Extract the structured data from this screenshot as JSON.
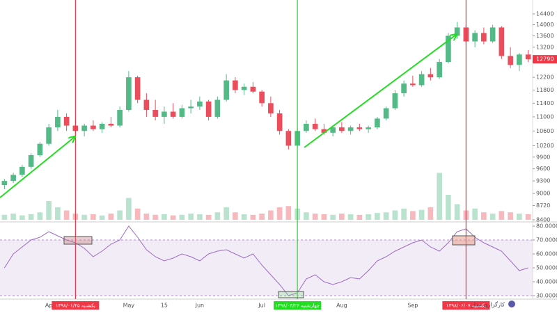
{
  "chart_data": {
    "type": "candlestick",
    "categories": [
      null,
      null,
      null,
      null,
      null,
      "Ap",
      null,
      null,
      "یکشنبه ۱۳۹۸/۰۱/۲۵",
      null,
      null,
      null,
      null,
      null,
      "May",
      null,
      null,
      null,
      "15",
      null,
      null,
      null,
      "Jun",
      null,
      null,
      null,
      null,
      null,
      null,
      "Jul",
      null,
      null,
      null,
      "چهارشنبه ۱۳۹۸/۰۴/۲۶",
      null,
      null,
      null,
      null,
      "Aug",
      null,
      null,
      null,
      null,
      null,
      null,
      null,
      "Sep",
      null,
      null,
      null,
      null,
      null,
      "یکشنبه ۱۳۹۸/۰۶/۰۷",
      null,
      null,
      null,
      null,
      null,
      null,
      null
    ],
    "open": [
      9200,
      9300,
      9450,
      9650,
      9950,
      10250,
      10700,
      11000,
      10750,
      10600,
      10750,
      10650,
      10800,
      10750,
      11200,
      12200,
      11500,
      11200,
      11000,
      11150,
      11000,
      11250,
      11300,
      11450,
      11000,
      11500,
      12100,
      11800,
      11900,
      11750,
      11400,
      11100,
      10600,
      10200,
      10600,
      10800,
      10650,
      10550,
      10700,
      10600,
      10700,
      10650,
      10700,
      10950,
      11250,
      11700,
      12000,
      11950,
      12300,
      12200,
      12700,
      13600,
      13900,
      13400,
      13700,
      13400,
      13900,
      12900,
      12600,
      12950
    ],
    "high": [
      9350,
      9500,
      9700,
      10000,
      10300,
      10800,
      11200,
      11100,
      10900,
      10800,
      10900,
      10850,
      11000,
      11300,
      12400,
      12250,
      11700,
      11500,
      11300,
      11400,
      11350,
      11500,
      11600,
      11500,
      11600,
      12300,
      12200,
      12000,
      12050,
      11800,
      11600,
      11200,
      10650,
      10700,
      10900,
      10950,
      10800,
      10750,
      10850,
      10750,
      10800,
      10750,
      11000,
      11300,
      11800,
      12100,
      12250,
      12400,
      12500,
      12800,
      13700,
      14100,
      14000,
      13800,
      13900,
      14000,
      13950,
      13200,
      13000,
      13100
    ],
    "low": [
      9100,
      9250,
      9400,
      9600,
      9900,
      10200,
      10600,
      10600,
      10500,
      10450,
      10600,
      10550,
      10700,
      10700,
      11150,
      11400,
      11000,
      10900,
      10800,
      10950,
      10950,
      11100,
      11200,
      10900,
      10950,
      11450,
      11700,
      11650,
      11700,
      11300,
      11000,
      10500,
      10100,
      10150,
      10550,
      10600,
      10500,
      10450,
      10550,
      10500,
      10600,
      10550,
      10650,
      10900,
      11200,
      11600,
      11900,
      11900,
      12100,
      12150,
      12650,
      13500,
      13300,
      13200,
      13300,
      13350,
      12800,
      12500,
      12400,
      12700
    ],
    "close": [
      9300,
      9450,
      9650,
      9950,
      10250,
      10700,
      11000,
      10750,
      10600,
      10750,
      10650,
      10800,
      10750,
      11200,
      12200,
      11500,
      11200,
      11000,
      11150,
      11000,
      11250,
      11300,
      11450,
      11000,
      11500,
      12100,
      11800,
      11900,
      11750,
      11400,
      11100,
      10600,
      10200,
      10600,
      10800,
      10650,
      10550,
      10700,
      10600,
      10700,
      10650,
      10700,
      10950,
      11250,
      11700,
      12000,
      11950,
      12300,
      12200,
      12700,
      13600,
      13900,
      13400,
      13700,
      13400,
      13900,
      12900,
      12600,
      12950,
      12790
    ],
    "volume": [
      8,
      10,
      7,
      9,
      12,
      30,
      20,
      15,
      10,
      8,
      9,
      7,
      10,
      15,
      35,
      18,
      10,
      8,
      9,
      7,
      8,
      10,
      9,
      8,
      12,
      20,
      12,
      9,
      8,
      10,
      15,
      20,
      22,
      18,
      12,
      10,
      9,
      8,
      10,
      9,
      8,
      9,
      11,
      12,
      15,
      18,
      14,
      16,
      20,
      75,
      40,
      25,
      15,
      18,
      12,
      10,
      14,
      12,
      10,
      9
    ],
    "ylim": [
      8400,
      14800
    ],
    "log_scale": true,
    "grid": false,
    "yticks": [
      8400,
      8720,
      9000,
      9300,
      9600,
      9900,
      10200,
      10600,
      11000,
      11400,
      11800,
      12200,
      13200,
      13600,
      14000,
      14400
    ],
    "last_price": 12790,
    "colors": {
      "up": "#53b987",
      "down": "#eb4d5c"
    },
    "events": [
      {
        "label": "یکشنبه ۱۳۹۸/۰۱/۲۵",
        "color": "#f23645"
      },
      {
        "label": "چهارشنبه ۱۳۹۸/۰۴/۲۶",
        "color": "#22dd22"
      },
      {
        "label": "یکشنبه ۱۳۹۸/۰۶/۰۷",
        "color": "#f23645"
      }
    ],
    "rsi": {
      "values": [
        50,
        60,
        65,
        70,
        72,
        76,
        73,
        70,
        68,
        64,
        58,
        62,
        67,
        70,
        80,
        72,
        63,
        58,
        55,
        57,
        60,
        58,
        55,
        60,
        62,
        63,
        60,
        57,
        60,
        52,
        45,
        38,
        30,
        32,
        42,
        45,
        40,
        38,
        40,
        43,
        42,
        48,
        55,
        58,
        62,
        65,
        68,
        70,
        65,
        62,
        68,
        76,
        78,
        72,
        68,
        65,
        62,
        55,
        48,
        50
      ],
      "ylim": [
        28.5,
        81.5
      ],
      "band": [
        30,
        70
      ],
      "color": "#9c6ac4",
      "yticks": [
        {
          "value": 80,
          "label": "80.0000"
        },
        {
          "value": 70,
          "label": "70.0000"
        },
        {
          "value": 60,
          "label": "60.0000"
        },
        {
          "value": 50,
          "label": "50.0000"
        },
        {
          "value": 40,
          "label": "40.0000"
        },
        {
          "value": 30,
          "label": "30.0000"
        }
      ]
    }
  },
  "watermark": "کارگزاری بیدار"
}
